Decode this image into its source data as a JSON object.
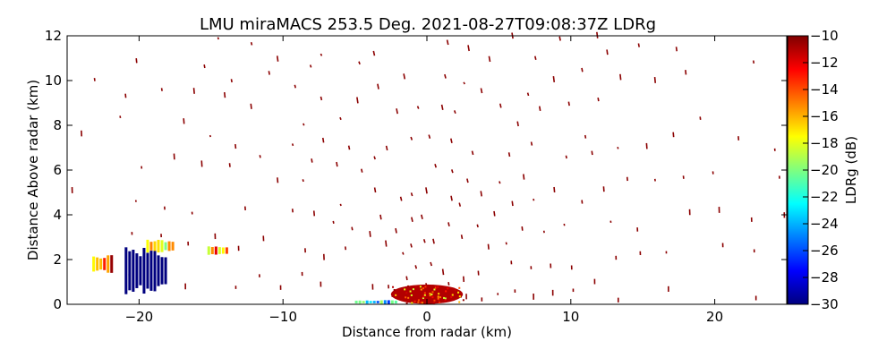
{
  "chart_data": {
    "type": "heatmap",
    "title": "LMU miraMACS 253.5 Deg. 2021-08-27T09:08:37Z  LDRg",
    "xlabel": "Distance from radar (km)",
    "ylabel": "Distance Above radar  (km)",
    "colorbar_label": "LDRg (dB)",
    "xlim": [
      -25,
      25
    ],
    "ylim": [
      0,
      12
    ],
    "clim": [
      -30,
      -10
    ],
    "x_ticks": [
      -20,
      -10,
      0,
      10,
      20
    ],
    "y_ticks": [
      0,
      2,
      4,
      6,
      8,
      10,
      12
    ],
    "colorbar_ticks": [
      -10,
      -12,
      -14,
      -16,
      -18,
      -20,
      -22,
      -24,
      -26,
      -28,
      -30
    ],
    "colormap": "jet",
    "colormap_stops": [
      "#00007f",
      "#0000ff",
      "#007fff",
      "#00ffff",
      "#7fff7f",
      "#ffff00",
      "#ff7f00",
      "#ff0000",
      "#7f0000"
    ],
    "grid": false,
    "series": [
      {
        "values": [
          {
            "x": 0.0,
            "y": 0.45,
            "width_km": 5.0,
            "height_km": 0.55,
            "ldr_db": -11
          },
          {
            "x": -19.5,
            "y": 1.5,
            "width_km": 3.0,
            "height_km": 2.2,
            "ldr_db": -30
          },
          {
            "x": -3.5,
            "y": 0.1,
            "width_km": 3.0,
            "height_km": 0.2,
            "ldr_db": -23
          },
          {
            "x": -22.5,
            "y": 1.8,
            "width_km": 1.5,
            "height_km": 0.8,
            "ldr_db": -14
          },
          {
            "x": -18.5,
            "y": 2.6,
            "width_km": 2.0,
            "height_km": 0.6,
            "ldr_db": -17
          },
          {
            "x": -14.5,
            "y": 2.4,
            "width_km": 1.5,
            "height_km": 0.4,
            "ldr_db": -15
          }
        ]
      }
    ]
  }
}
